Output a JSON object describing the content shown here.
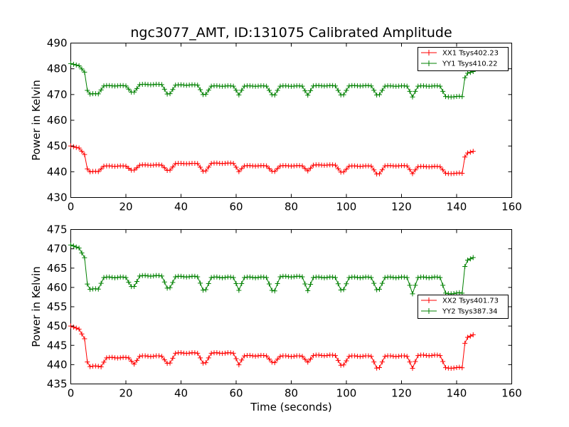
{
  "title": "ngc3077_AMT, ID:131075 Calibrated Amplitude",
  "xlabel": "Time (seconds)",
  "chart_data": [
    {
      "type": "line",
      "title": "ngc3077_AMT, ID:131075 Calibrated Amplitude",
      "xlabel": "",
      "ylabel": "Power in Kelvin",
      "xlim": [
        0,
        160
      ],
      "ylim": [
        430,
        490
      ],
      "xticks": [
        0,
        20,
        40,
        60,
        80,
        100,
        120,
        140,
        160
      ],
      "yticks": [
        430,
        440,
        450,
        460,
        470,
        480,
        490
      ],
      "grid": false,
      "legend_position": "top-right",
      "series": [
        {
          "name": "XX1 Tsys402.23",
          "color": "#ff0000",
          "base": 441,
          "start": 450,
          "drop_at": 5,
          "end": 448,
          "rise_at": 142,
          "bumps": [
            {
              "x": 16,
              "y": 442.2
            },
            {
              "x": 29,
              "y": 442.6
            },
            {
              "x": 42,
              "y": 443.2
            },
            {
              "x": 55,
              "y": 443.3
            },
            {
              "x": 67,
              "y": 442.3
            },
            {
              "x": 80,
              "y": 442.3
            },
            {
              "x": 92,
              "y": 442.6
            },
            {
              "x": 105,
              "y": 442.2
            },
            {
              "x": 118,
              "y": 442.3
            },
            {
              "x": 130,
              "y": 442.0
            }
          ],
          "troughs": [
            440,
            440.5,
            440.5,
            440.3,
            440.2,
            440.2,
            440.2,
            439.8,
            439.2,
            439.4
          ]
        },
        {
          "name": "YY1 Tsys410.22",
          "color": "#008000",
          "base": 471.5,
          "start": 482,
          "drop_at": 5,
          "end": 479,
          "rise_at": 142,
          "bumps": [
            {
              "x": 16,
              "y": 473.4
            },
            {
              "x": 29,
              "y": 473.9
            },
            {
              "x": 42,
              "y": 473.7
            },
            {
              "x": 55,
              "y": 473.3
            },
            {
              "x": 67,
              "y": 473.3
            },
            {
              "x": 80,
              "y": 473.3
            },
            {
              "x": 92,
              "y": 473.4
            },
            {
              "x": 105,
              "y": 473.4
            },
            {
              "x": 118,
              "y": 473.3
            },
            {
              "x": 130,
              "y": 473.3
            }
          ],
          "troughs": [
            470.2,
            470.8,
            470.2,
            470.1,
            470.0,
            469.9,
            469.6,
            469.8,
            469.9,
            469.2
          ]
        }
      ]
    },
    {
      "type": "line",
      "title": "",
      "xlabel": "Time (seconds)",
      "ylabel": "Power in Kelvin",
      "xlim": [
        0,
        160
      ],
      "ylim": [
        435,
        475
      ],
      "xticks": [
        0,
        20,
        40,
        60,
        80,
        100,
        120,
        140,
        160
      ],
      "yticks": [
        435,
        440,
        445,
        450,
        455,
        460,
        465,
        470,
        475
      ],
      "grid": false,
      "legend_position": "center-right",
      "series": [
        {
          "name": "XX2 Tsys401.73",
          "color": "#ff0000",
          "base": 440.8,
          "start": 450,
          "drop_at": 5,
          "end": 447.8,
          "rise_at": 142,
          "bumps": [
            {
              "x": 17,
              "y": 441.8
            },
            {
              "x": 29,
              "y": 442.2
            },
            {
              "x": 42,
              "y": 443.0
            },
            {
              "x": 55,
              "y": 443.0
            },
            {
              "x": 67,
              "y": 442.3
            },
            {
              "x": 80,
              "y": 442.2
            },
            {
              "x": 92,
              "y": 442.4
            },
            {
              "x": 105,
              "y": 442.2
            },
            {
              "x": 118,
              "y": 442.2
            },
            {
              "x": 130,
              "y": 442.4
            }
          ],
          "troughs": [
            439.5,
            440.0,
            440.3,
            440.5,
            440.1,
            440.6,
            440.5,
            439.8,
            439.2,
            439.2
          ]
        },
        {
          "name": "YY2 Tsys387.34",
          "color": "#008000",
          "base": 461,
          "start": 471,
          "drop_at": 5,
          "end": 467.8,
          "rise_at": 142,
          "bumps": [
            {
              "x": 16,
              "y": 462.6
            },
            {
              "x": 29,
              "y": 463.0
            },
            {
              "x": 42,
              "y": 462.8
            },
            {
              "x": 55,
              "y": 462.6
            },
            {
              "x": 67,
              "y": 462.6
            },
            {
              "x": 80,
              "y": 462.8
            },
            {
              "x": 92,
              "y": 462.6
            },
            {
              "x": 105,
              "y": 462.6
            },
            {
              "x": 118,
              "y": 462.6
            },
            {
              "x": 130,
              "y": 462.6
            }
          ],
          "troughs": [
            459.5,
            460.1,
            459.8,
            459.4,
            459.4,
            459.2,
            459.0,
            459.3,
            459.5,
            458.5
          ]
        }
      ]
    }
  ]
}
